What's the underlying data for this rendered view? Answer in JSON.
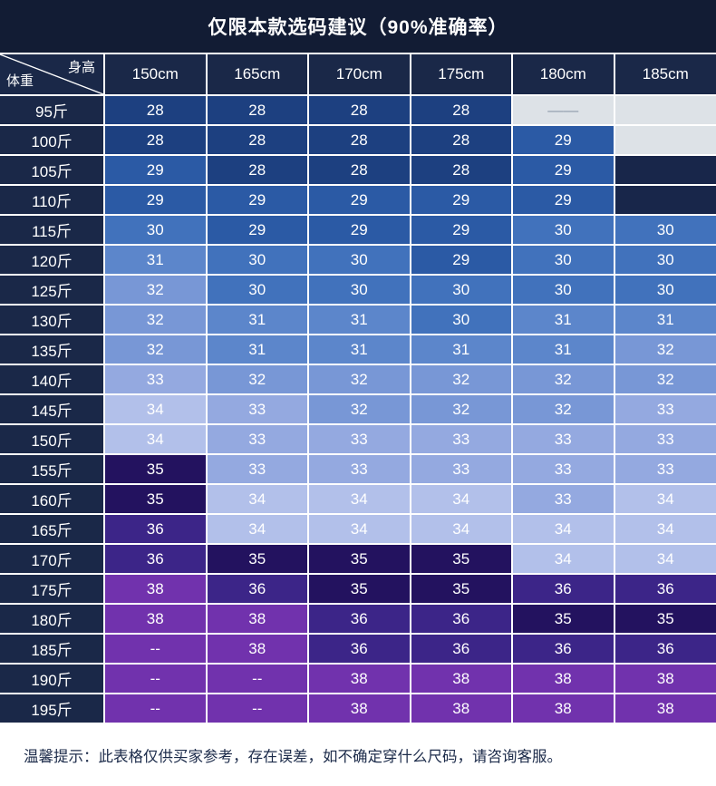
{
  "title": "仅限本款选码建议（90%准确率）",
  "header": {
    "height_label": "身高",
    "weight_label": "体重",
    "columns": [
      "150cm",
      "165cm",
      "170cm",
      "175cm",
      "180cm",
      "185cm"
    ]
  },
  "rows": [
    {
      "weight": "95斤",
      "cells": [
        [
          "28",
          "28"
        ],
        [
          "28",
          "28"
        ],
        [
          "28",
          "28"
        ],
        [
          "28",
          "28"
        ],
        [
          "——",
          "empty_light"
        ],
        [
          "",
          "empty_light"
        ]
      ]
    },
    {
      "weight": "100斤",
      "cells": [
        [
          "28",
          "28"
        ],
        [
          "28",
          "28"
        ],
        [
          "28",
          "28"
        ],
        [
          "28",
          "28"
        ],
        [
          "29",
          "29"
        ],
        [
          "",
          "empty_light"
        ]
      ]
    },
    {
      "weight": "105斤",
      "cells": [
        [
          "29",
          "29"
        ],
        [
          "28",
          "28"
        ],
        [
          "28",
          "28"
        ],
        [
          "28",
          "28"
        ],
        [
          "29",
          "29"
        ],
        [
          "",
          "empty_dark"
        ]
      ]
    },
    {
      "weight": "110斤",
      "cells": [
        [
          "29",
          "29"
        ],
        [
          "29",
          "29"
        ],
        [
          "29",
          "29"
        ],
        [
          "29",
          "29"
        ],
        [
          "29",
          "29"
        ],
        [
          "",
          "empty_dark"
        ]
      ]
    },
    {
      "weight": "115斤",
      "cells": [
        [
          "30",
          "30"
        ],
        [
          "29",
          "29"
        ],
        [
          "29",
          "29"
        ],
        [
          "29",
          "29"
        ],
        [
          "30",
          "30"
        ],
        [
          "30",
          "30"
        ]
      ]
    },
    {
      "weight": "120斤",
      "cells": [
        [
          "31",
          "31"
        ],
        [
          "30",
          "30"
        ],
        [
          "30",
          "30"
        ],
        [
          "29",
          "29"
        ],
        [
          "30",
          "30"
        ],
        [
          "30",
          "30"
        ]
      ]
    },
    {
      "weight": "125斤",
      "cells": [
        [
          "32",
          "32"
        ],
        [
          "30",
          "30"
        ],
        [
          "30",
          "30"
        ],
        [
          "30",
          "30"
        ],
        [
          "30",
          "30"
        ],
        [
          "30",
          "30"
        ]
      ]
    },
    {
      "weight": "130斤",
      "cells": [
        [
          "32",
          "32"
        ],
        [
          "31",
          "31"
        ],
        [
          "31",
          "31"
        ],
        [
          "30",
          "30"
        ],
        [
          "31",
          "31"
        ],
        [
          "31",
          "31"
        ]
      ]
    },
    {
      "weight": "135斤",
      "cells": [
        [
          "32",
          "32"
        ],
        [
          "31",
          "31"
        ],
        [
          "31",
          "31"
        ],
        [
          "31",
          "31"
        ],
        [
          "31",
          "31"
        ],
        [
          "32",
          "32"
        ]
      ]
    },
    {
      "weight": "140斤",
      "cells": [
        [
          "33",
          "33"
        ],
        [
          "32",
          "32"
        ],
        [
          "32",
          "32"
        ],
        [
          "32",
          "32"
        ],
        [
          "32",
          "32"
        ],
        [
          "32",
          "32"
        ]
      ]
    },
    {
      "weight": "145斤",
      "cells": [
        [
          "34",
          "34"
        ],
        [
          "33",
          "33"
        ],
        [
          "32",
          "32"
        ],
        [
          "32",
          "32"
        ],
        [
          "32",
          "32"
        ],
        [
          "33",
          "33"
        ]
      ]
    },
    {
      "weight": "150斤",
      "cells": [
        [
          "34",
          "34"
        ],
        [
          "33",
          "33"
        ],
        [
          "33",
          "33"
        ],
        [
          "33",
          "33"
        ],
        [
          "33",
          "33"
        ],
        [
          "33",
          "33"
        ]
      ]
    },
    {
      "weight": "155斤",
      "cells": [
        [
          "35",
          "35"
        ],
        [
          "33",
          "33"
        ],
        [
          "33",
          "33"
        ],
        [
          "33",
          "33"
        ],
        [
          "33",
          "33"
        ],
        [
          "33",
          "33"
        ]
      ]
    },
    {
      "weight": "160斤",
      "cells": [
        [
          "35",
          "35"
        ],
        [
          "34",
          "34"
        ],
        [
          "34",
          "34"
        ],
        [
          "34",
          "34"
        ],
        [
          "33",
          "33"
        ],
        [
          "34",
          "34"
        ]
      ]
    },
    {
      "weight": "165斤",
      "cells": [
        [
          "36",
          "36"
        ],
        [
          "34",
          "34"
        ],
        [
          "34",
          "34"
        ],
        [
          "34",
          "34"
        ],
        [
          "34",
          "34"
        ],
        [
          "34",
          "34"
        ]
      ]
    },
    {
      "weight": "170斤",
      "cells": [
        [
          "36",
          "36"
        ],
        [
          "35",
          "35"
        ],
        [
          "35",
          "35"
        ],
        [
          "35",
          "35"
        ],
        [
          "34",
          "34"
        ],
        [
          "34",
          "34"
        ]
      ]
    },
    {
      "weight": "175斤",
      "cells": [
        [
          "38",
          "38"
        ],
        [
          "36",
          "36"
        ],
        [
          "35",
          "35"
        ],
        [
          "35",
          "35"
        ],
        [
          "36",
          "36"
        ],
        [
          "36",
          "36"
        ]
      ]
    },
    {
      "weight": "180斤",
      "cells": [
        [
          "38",
          "38"
        ],
        [
          "38",
          "38"
        ],
        [
          "36",
          "36"
        ],
        [
          "36",
          "36"
        ],
        [
          "35",
          "35"
        ],
        [
          "35",
          "35"
        ]
      ]
    },
    {
      "weight": "185斤",
      "cells": [
        [
          "--",
          "38"
        ],
        [
          "38",
          "38"
        ],
        [
          "36",
          "36"
        ],
        [
          "36",
          "36"
        ],
        [
          "36",
          "36"
        ],
        [
          "36",
          "36"
        ]
      ]
    },
    {
      "weight": "190斤",
      "cells": [
        [
          "--",
          "38"
        ],
        [
          "--",
          "38"
        ],
        [
          "38",
          "38"
        ],
        [
          "38",
          "38"
        ],
        [
          "38",
          "38"
        ],
        [
          "38",
          "38"
        ]
      ]
    },
    {
      "weight": "195斤",
      "cells": [
        [
          "--",
          "38"
        ],
        [
          "--",
          "38"
        ],
        [
          "38",
          "38"
        ],
        [
          "38",
          "38"
        ],
        [
          "38",
          "38"
        ],
        [
          "38",
          "38"
        ]
      ]
    }
  ],
  "colors": {
    "28": "#1d4080",
    "29": "#2b5aa5",
    "30": "#4172bc",
    "31": "#5c86cb",
    "32": "#7897d6",
    "33": "#94a9e0",
    "34": "#b2c0ea",
    "35": "#23125f",
    "36": "#3c2588",
    "38": "#7132ad",
    "empty_light": "#dde2e7",
    "empty_dark": "#18264a",
    "page_bg": "#15203c",
    "header_bg": "#1a2848",
    "grid_line": "#ffffff",
    "cell_text": "#ffffff",
    "footer_bg": "#ffffff",
    "footer_text": "#1c2b4a"
  },
  "footer": {
    "note": "温馨提示：此表格仅供买家参考，存在误差，如不确定穿什么尺码，请咨询客服。"
  },
  "chart_data": {
    "type": "table",
    "title": "仅限本款选码建议（90%准确率）",
    "columns": [
      "体重\\身高",
      "150cm",
      "165cm",
      "170cm",
      "175cm",
      "180cm",
      "185cm"
    ],
    "rows": [
      [
        "95斤",
        "28",
        "28",
        "28",
        "28",
        "——",
        ""
      ],
      [
        "100斤",
        "28",
        "28",
        "28",
        "28",
        "29",
        ""
      ],
      [
        "105斤",
        "29",
        "28",
        "28",
        "28",
        "29",
        ""
      ],
      [
        "110斤",
        "29",
        "29",
        "29",
        "29",
        "29",
        ""
      ],
      [
        "115斤",
        "30",
        "29",
        "29",
        "29",
        "30",
        "30"
      ],
      [
        "120斤",
        "31",
        "30",
        "30",
        "29",
        "30",
        "30"
      ],
      [
        "125斤",
        "32",
        "30",
        "30",
        "30",
        "30",
        "30"
      ],
      [
        "130斤",
        "32",
        "31",
        "31",
        "30",
        "31",
        "31"
      ],
      [
        "135斤",
        "32",
        "31",
        "31",
        "31",
        "31",
        "32"
      ],
      [
        "140斤",
        "33",
        "32",
        "32",
        "32",
        "32",
        "32"
      ],
      [
        "145斤",
        "34",
        "33",
        "32",
        "32",
        "32",
        "33"
      ],
      [
        "150斤",
        "34",
        "33",
        "33",
        "33",
        "33",
        "33"
      ],
      [
        "155斤",
        "35",
        "33",
        "33",
        "33",
        "33",
        "33"
      ],
      [
        "160斤",
        "35",
        "34",
        "34",
        "34",
        "33",
        "34"
      ],
      [
        "165斤",
        "36",
        "34",
        "34",
        "34",
        "34",
        "34"
      ],
      [
        "170斤",
        "36",
        "35",
        "35",
        "35",
        "34",
        "34"
      ],
      [
        "175斤",
        "38",
        "36",
        "35",
        "35",
        "36",
        "36"
      ],
      [
        "180斤",
        "38",
        "38",
        "36",
        "36",
        "35",
        "35"
      ],
      [
        "185斤",
        "--",
        "38",
        "36",
        "36",
        "36",
        "36"
      ],
      [
        "190斤",
        "--",
        "--",
        "38",
        "38",
        "38",
        "38"
      ],
      [
        "195斤",
        "--",
        "--",
        "38",
        "38",
        "38",
        "38"
      ]
    ],
    "note": "温馨提示：此表格仅供买家参考，存在误差，如不确定穿什么尺码，请咨询客服。"
  }
}
